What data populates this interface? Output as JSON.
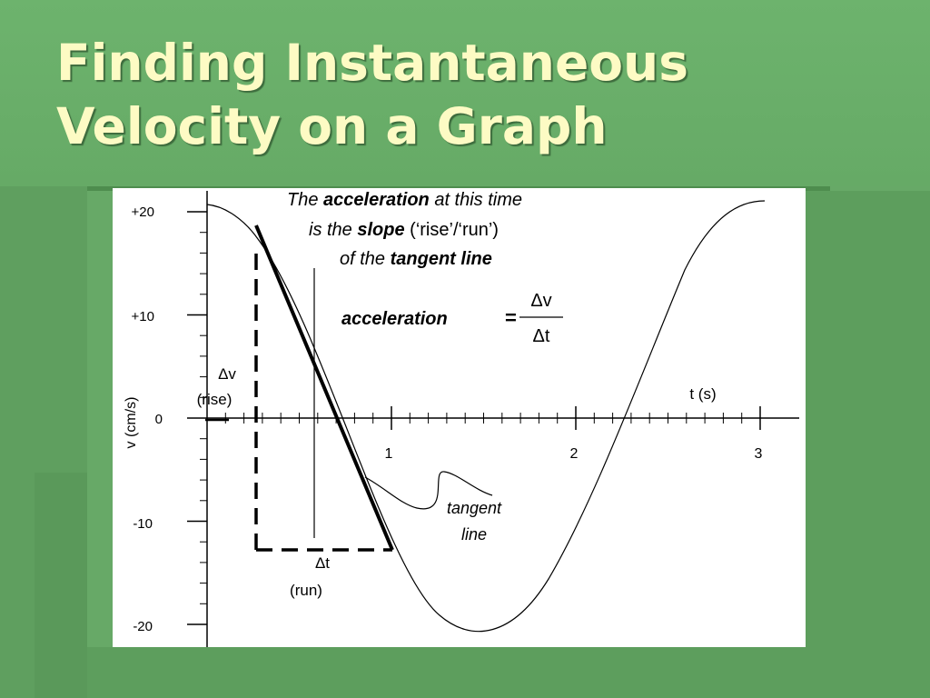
{
  "slide": {
    "title_line1": "Finding Instantaneous",
    "title_line2": "Velocity on a Graph",
    "background_color": "#67a967",
    "title_color": "#fdfbc4"
  },
  "graph": {
    "y_ticks": [
      "+20",
      "+10",
      "0",
      "-10",
      "-20"
    ],
    "y_axis_label": "v (cm/s)",
    "x_ticks": [
      "1",
      "2",
      "3"
    ],
    "x_axis_label": "t (s)",
    "annotation_line1_a": "The ",
    "annotation_line1_b": "acceleration",
    "annotation_line1_c": " at this time",
    "annotation_line2_a": "is the ",
    "annotation_line2_b": "slope",
    "annotation_line2_c": " (‘rise’/‘run’)",
    "annotation_line3_a": "of the ",
    "annotation_line3_b": "tangent line",
    "formula_label": "acceleration",
    "formula_equals": "=",
    "formula_numerator": "Δv",
    "formula_denominator": "Δt",
    "rise_symbol": "Δv",
    "rise_label": "(rise)",
    "run_symbol": "Δt",
    "run_label": "(run)",
    "tangent_label_line1": "tangent",
    "tangent_label_line2": "line"
  }
}
